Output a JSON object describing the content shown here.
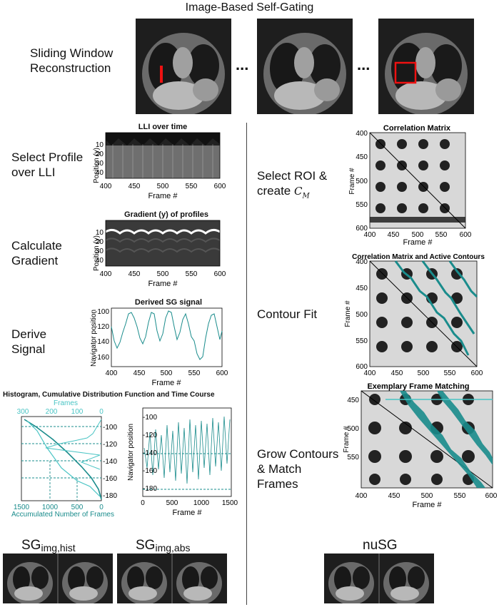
{
  "header": {
    "title": "Image-Based Self-Gating",
    "ellipsis": "..."
  },
  "steps_left": {
    "sliding": "Sliding Window Reconstruction",
    "select_profile": "Select Profile over LLI",
    "gradient": "Calculate Gradient",
    "derive": "Derive Signal"
  },
  "steps_right": {
    "select_roi": "Select ROI & create",
    "cm_symbol": "C",
    "cm_sub": "M",
    "contour_fit": "Contour Fit",
    "grow": "Grow Contours & Match Frames"
  },
  "plots": {
    "lli": {
      "title": "LLI over time",
      "ylabel": "Position (y)",
      "xlabel": "Frame #",
      "xticks": [
        "400",
        "450",
        "500",
        "550",
        "600"
      ],
      "yticks": [
        "10",
        "20",
        "30",
        "40"
      ]
    },
    "grad": {
      "title": "Gradient (y) of profiles",
      "ylabel": "Position (y)",
      "xlabel": "Frame #",
      "xticks": [
        "400",
        "450",
        "500",
        "550",
        "600"
      ],
      "yticks": [
        "10",
        "20",
        "30",
        "40"
      ]
    },
    "sg": {
      "title": "Derived SG signal",
      "ylabel": "Navigator position",
      "xlabel": "Frame #",
      "xticks": [
        "400",
        "450",
        "500",
        "550",
        "600"
      ],
      "yticks": [
        "-100",
        "-120",
        "-140",
        "-160"
      ]
    },
    "hist": {
      "title": "Histogram, Cumulative Distribution Function and Time Course",
      "top_label": "Frames",
      "top_ticks": [
        "300",
        "200",
        "100",
        "0"
      ],
      "bottom_label": "Accumulated Number of Frames",
      "bottom_ticks": [
        "1500",
        "1000",
        "500",
        "0"
      ],
      "yticks": [
        "-100",
        "-120",
        "-140",
        "-160",
        "-180"
      ]
    },
    "tc": {
      "ylabel": "Navigator position",
      "xlabel": "Frame #",
      "xticks": [
        "0",
        "500",
        "1000",
        "1500"
      ],
      "yticks": [
        "-100",
        "-120",
        "-140",
        "-160",
        "-180"
      ]
    },
    "cm": {
      "title": "Correlation Matrix",
      "ylabel": "Frame #",
      "xlabel": "Frame #",
      "xticks": [
        "400",
        "450",
        "500",
        "550",
        "600"
      ],
      "yticks": [
        "400",
        "450",
        "500",
        "550",
        "600"
      ]
    },
    "cm2": {
      "title": "Correlation Matrix and Active Contours",
      "ylabel": "Frame #",
      "xlabel": "Frame #",
      "xticks": [
        "400",
        "450",
        "500",
        "550",
        "600"
      ],
      "yticks": [
        "400",
        "450",
        "500",
        "550",
        "600"
      ]
    },
    "cm3": {
      "title": "Exemplary Frame Matching",
      "ylabel": "Frame #",
      "xlabel": "Frame #",
      "xticks": [
        "400",
        "450",
        "500",
        "550",
        "600"
      ],
      "yticks": [
        "450",
        "500",
        "550"
      ]
    }
  },
  "bottom": {
    "hist_main": "SG",
    "hist_sub": "img,hist",
    "abs_main": "SG",
    "abs_sub": "img,abs",
    "nusg": "nuSG"
  },
  "colors": {
    "teal": "#1a8c8c",
    "teal_light": "#49c4c4",
    "red": "#e11"
  }
}
